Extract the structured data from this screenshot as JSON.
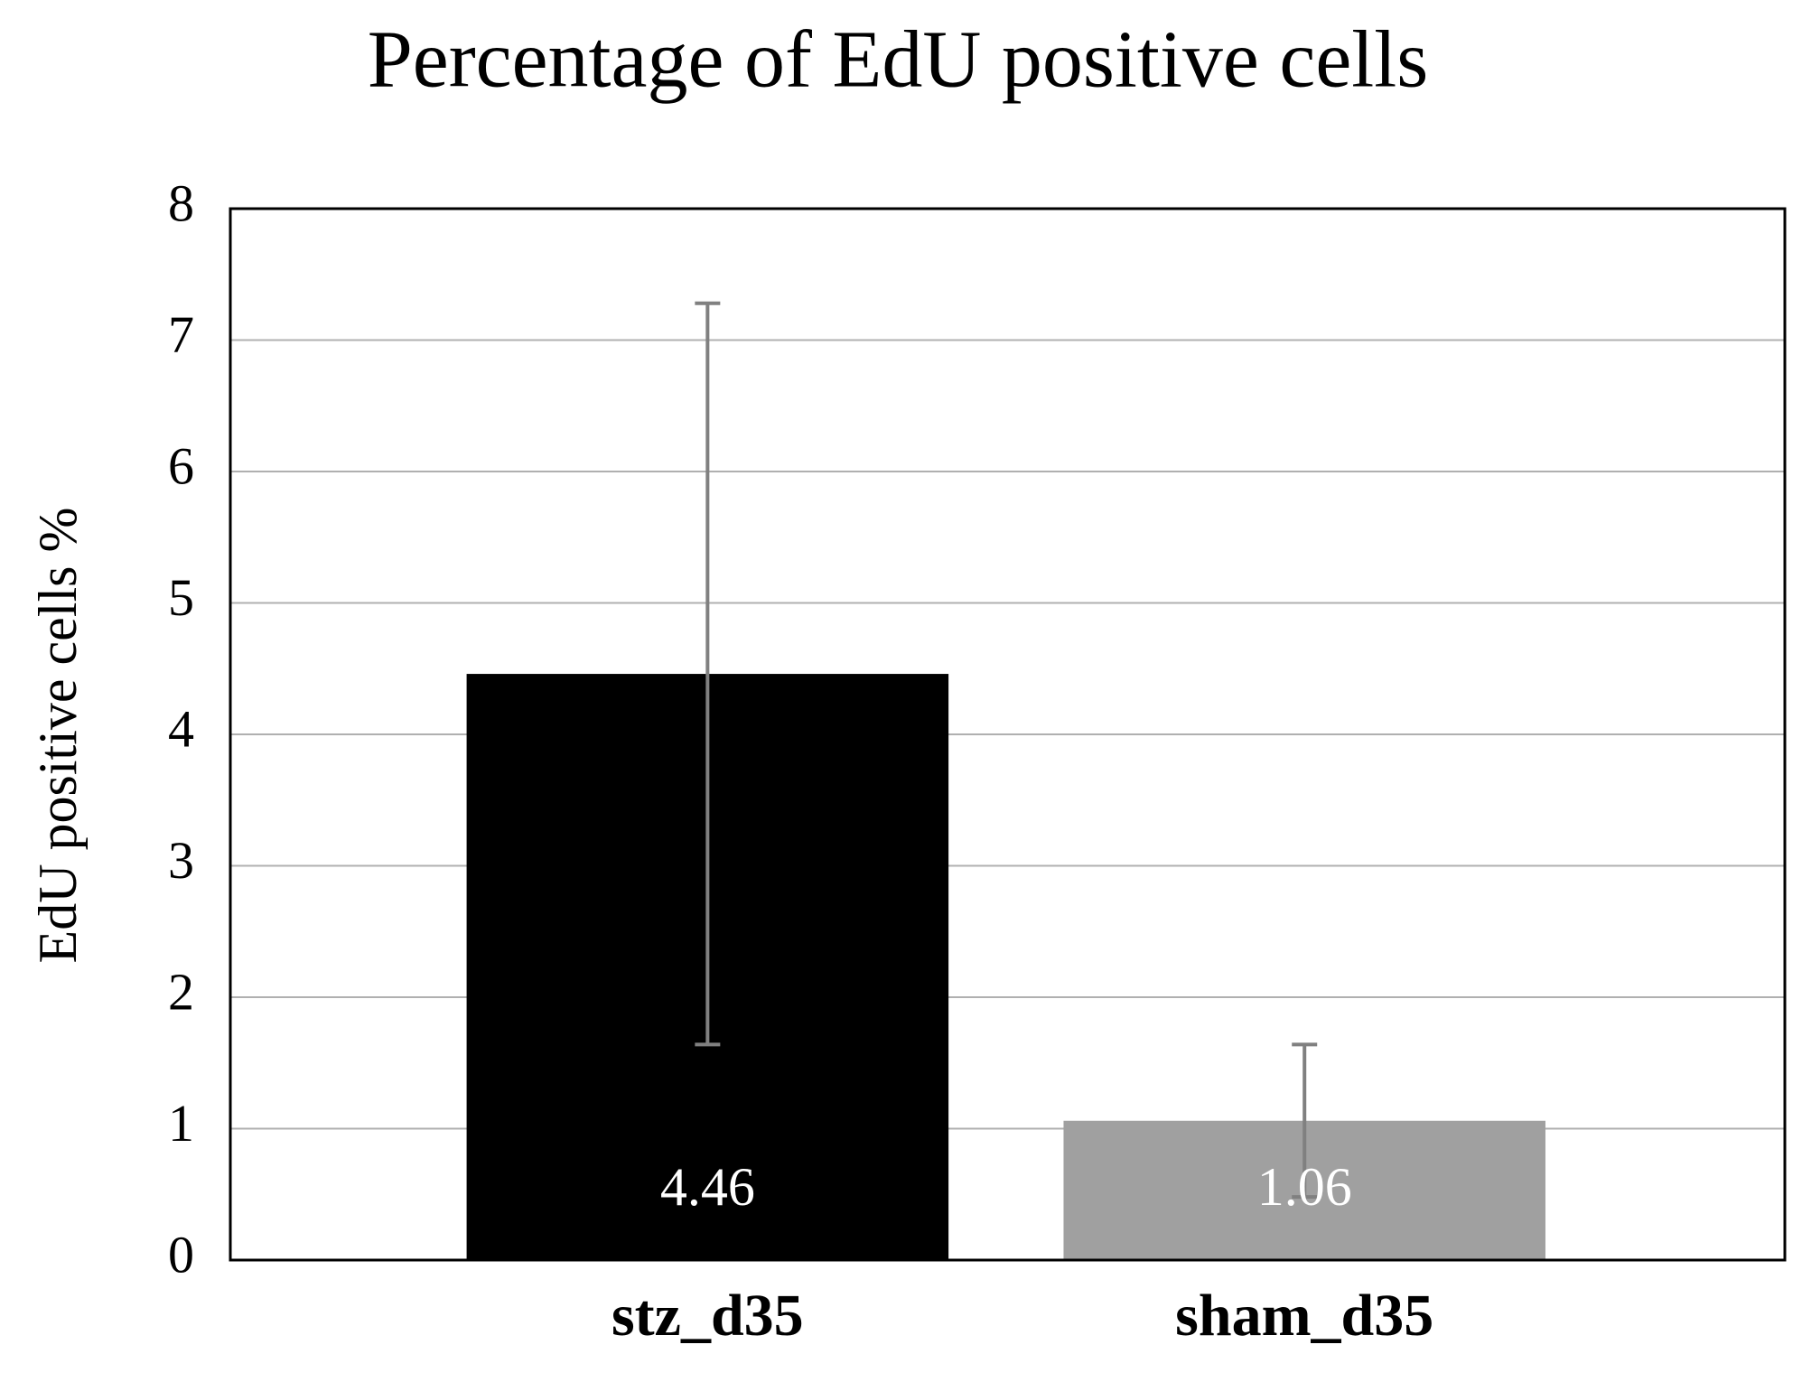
{
  "chart_data": {
    "type": "bar",
    "title": "Percentage of EdU positive cells",
    "y_label": "EdU positive cells %",
    "categories": [
      "stz_d35",
      "sham_d35"
    ],
    "values": [
      4.46,
      1.06
    ],
    "errors": [
      2.82,
      0.58
    ],
    "colors": [
      "#000000",
      "#a0a0a0"
    ],
    "error_color": "#808080",
    "data_labels": true,
    "ylim": [
      0,
      8
    ],
    "yticks": [
      0,
      1,
      2,
      3,
      4,
      5,
      6,
      7,
      8
    ],
    "grid": true
  }
}
